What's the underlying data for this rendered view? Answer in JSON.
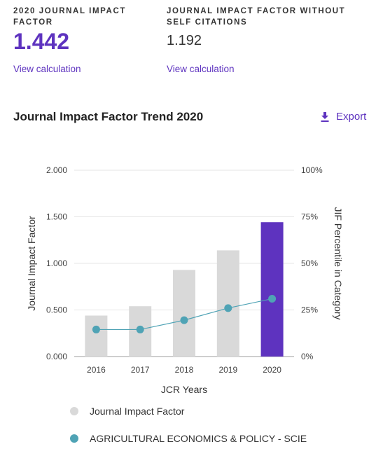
{
  "metrics": {
    "jif": {
      "label": "2020 JOURNAL IMPACT FACTOR",
      "value": "1.442",
      "link": "View calculation"
    },
    "jif_no_self": {
      "label": "JOURNAL IMPACT FACTOR WITHOUT SELF CITATIONS",
      "value": "1.192",
      "link": "View calculation"
    }
  },
  "trend": {
    "title": "Journal Impact Factor Trend 2020",
    "export_label": "Export",
    "export_icon": "download-icon"
  },
  "colors": {
    "accent": "#5e33bf",
    "bar": "#d9d9d9",
    "line": "#4fa3b5",
    "point": "#4fa3b5"
  },
  "chart_data": {
    "type": "bar",
    "categories": [
      "2016",
      "2017",
      "2018",
      "2019",
      "2020"
    ],
    "xlabel": "JCR Years",
    "ylabel": "Journal Impact Factor",
    "ylabel_right": "JIF Percentile in Category",
    "ylim": [
      0,
      2
    ],
    "ylim_right": [
      0,
      100
    ],
    "yticks": [
      "0.000",
      "0.500",
      "1.000",
      "1.500",
      "2.000"
    ],
    "yticks_right": [
      "0%",
      "25%",
      "50%",
      "75%",
      "100%"
    ],
    "highlight_category": "2020",
    "series": [
      {
        "name": "Journal Impact Factor",
        "type": "bar",
        "values": [
          0.44,
          0.54,
          0.93,
          1.14,
          1.442
        ]
      },
      {
        "name": "AGRICULTURAL ECONOMICS & POLICY - SCIE",
        "type": "line",
        "axis": "right",
        "values": [
          14.5,
          14.5,
          19.5,
          26.0,
          31.0
        ]
      }
    ],
    "legend_position": "bottom"
  }
}
